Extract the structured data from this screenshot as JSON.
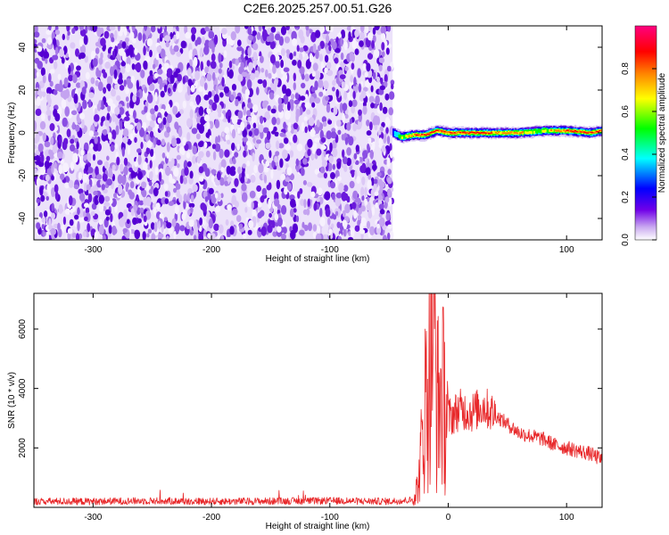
{
  "figure": {
    "title": "C2E6.2025.257.00.51.G26"
  },
  "chart_data": [
    {
      "type": "heatmap",
      "xlabel": "Height of straight line (km)",
      "ylabel": "Frequency (Hz)",
      "xlim": [
        -350,
        130
      ],
      "ylim": [
        -50,
        50
      ],
      "x_ticks": [
        -300,
        -200,
        -100,
        0,
        100
      ],
      "y_ticks": [
        -40,
        -20,
        0,
        20,
        40
      ],
      "colorbar": {
        "label": "Normalized spectral amplitude",
        "range": [
          0,
          1
        ],
        "ticks": [
          0.0,
          0.2,
          0.4,
          0.6,
          0.8
        ],
        "tick_labels": [
          "0.0",
          "0.2",
          "0.4",
          "0.6",
          "0.8"
        ],
        "colormap": [
          "#ffffff",
          "#6a00e0",
          "#0000ff",
          "#00ffff",
          "#00ff00",
          "#ffff00",
          "#ff8000",
          "#ff0000",
          "#ff0080"
        ]
      },
      "noise_region_x": [
        -350,
        -47
      ],
      "signal_track": {
        "x": [
          -47,
          -40,
          -30,
          -20,
          -10,
          0,
          20,
          40,
          60,
          80,
          100,
          120,
          130
        ],
        "frequency": [
          0,
          -2,
          -1,
          -1,
          1,
          0,
          0,
          0,
          0,
          1,
          1,
          0,
          1
        ],
        "amplitude": [
          0.3,
          0.6,
          0.8,
          0.9,
          0.85,
          0.9,
          0.95,
          0.8,
          0.7,
          0.6,
          0.85,
          0.9,
          0.8
        ]
      }
    },
    {
      "type": "line",
      "xlabel": "Height of straight line (km)",
      "ylabel": "SNR (10 * v/v)",
      "xlim": [
        -350,
        130
      ],
      "ylim": [
        0,
        7200
      ],
      "x_ticks": [
        -300,
        -200,
        -100,
        0,
        100
      ],
      "y_ticks": [
        2000,
        4000,
        6000
      ],
      "line_color": "#e8282a",
      "series": [
        {
          "x": [
            -350,
            -300,
            -250,
            -200,
            -150,
            -100,
            -50,
            -30,
            -25,
            -20,
            -15,
            -12,
            -10,
            -5,
            0,
            10,
            20,
            30,
            40,
            50,
            60,
            70,
            80,
            90,
            100,
            110,
            120,
            130
          ],
          "y": [
            200,
            200,
            220,
            200,
            210,
            220,
            200,
            250,
            800,
            3300,
            5000,
            7000,
            3500,
            3800,
            3000,
            3300,
            3200,
            3400,
            3100,
            2800,
            2500,
            2400,
            2300,
            2100,
            2000,
            1900,
            1800,
            1600
          ]
        }
      ]
    }
  ]
}
